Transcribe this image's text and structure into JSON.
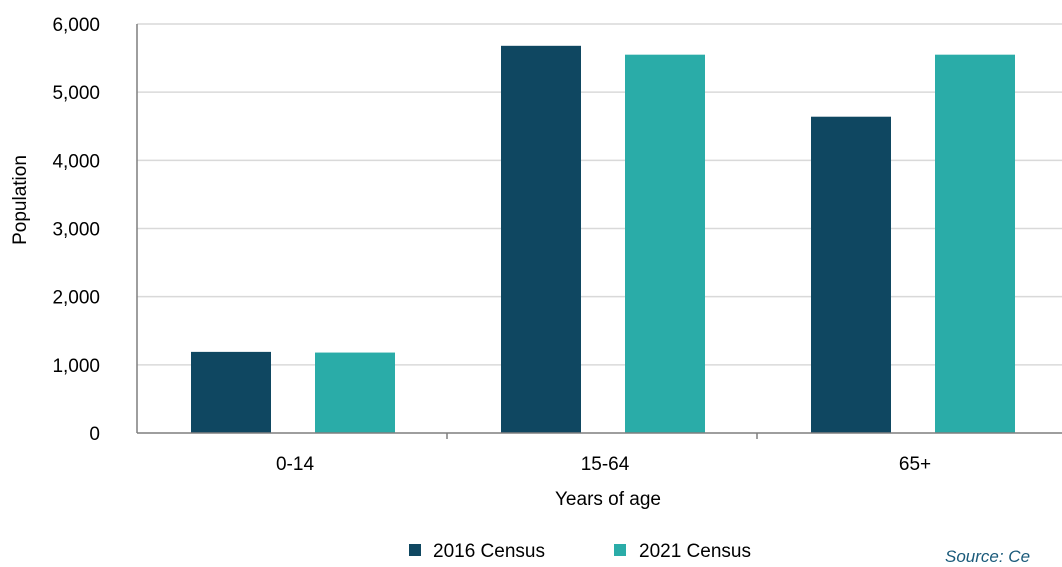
{
  "chart_data": {
    "type": "bar",
    "categories": [
      "0-14",
      "15-64",
      "65+"
    ],
    "series": [
      {
        "name": "2016 Census",
        "values": [
          1190,
          5680,
          4640
        ],
        "color": "#0f4761"
      },
      {
        "name": "2021 Census",
        "values": [
          1180,
          5550,
          5550
        ],
        "color": "#2aaca8"
      }
    ],
    "xlabel": "Years of age",
    "ylabel": "Population",
    "ylim": [
      0,
      6000
    ],
    "yticks": [
      0,
      1000,
      2000,
      3000,
      4000,
      5000,
      6000
    ],
    "ytick_labels": [
      "0",
      "1,000",
      "2,000",
      "3,000",
      "4,000",
      "5,000",
      "6,000"
    ],
    "grid": true,
    "legend_position": "bottom-center",
    "gridline_color": "#d9d9d9",
    "axis_color": "#7f7f7f",
    "source": "Source: Ce"
  }
}
